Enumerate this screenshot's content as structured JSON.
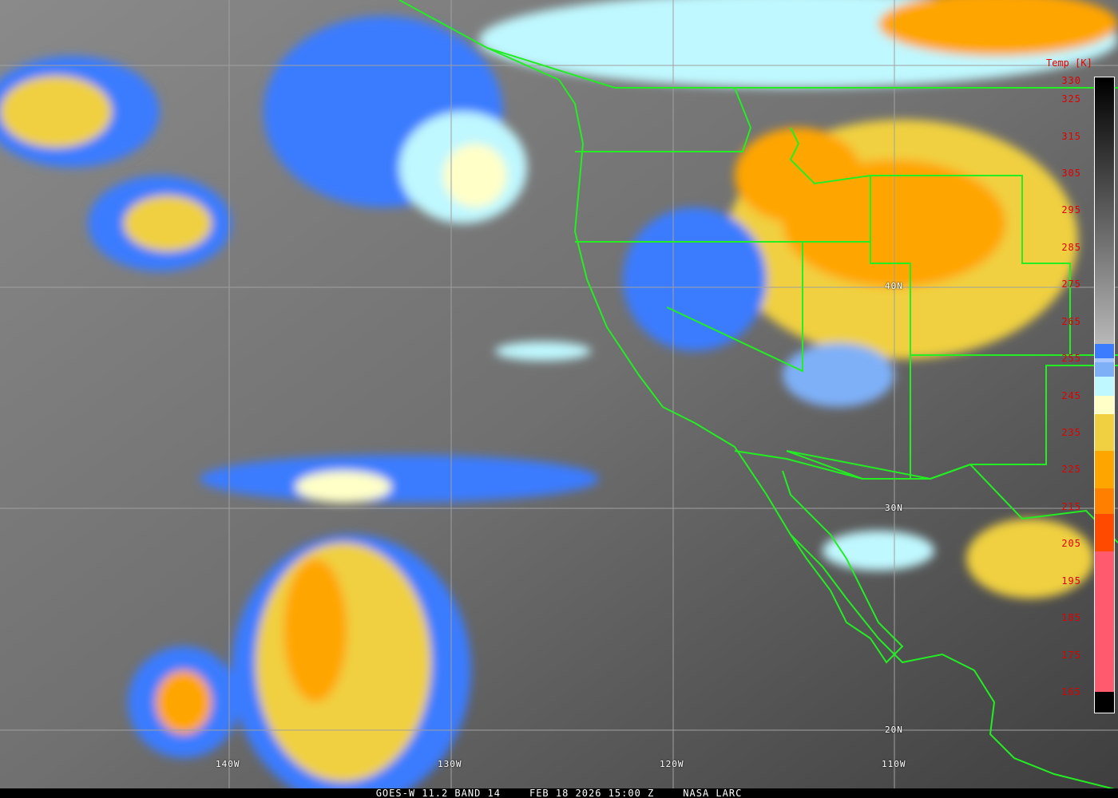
{
  "image": {
    "caption": {
      "satellite": "GOES-W 11.2 BAND 14",
      "datetime": "FEB 18 2026 15:00 Z",
      "source": "NASA LARC"
    },
    "longitude_labels": [
      "140W",
      "130W",
      "120W",
      "110W"
    ],
    "latitude_labels": [
      "40N",
      "30N",
      "20N"
    ],
    "boundary_color": "#22ee22",
    "grid_color": "#a0a0a0"
  },
  "legend": {
    "title": "Temp [K]",
    "ticks": [
      "330",
      "325",
      "315",
      "305",
      "295",
      "285",
      "275",
      "265",
      "255",
      "245",
      "235",
      "225",
      "215",
      "205",
      "195",
      "185",
      "175",
      "165"
    ],
    "range": [
      165,
      330
    ],
    "segments": [
      {
        "from": 330,
        "to": 259,
        "color": "gradient-black-to-lightgray"
      },
      {
        "from": 259,
        "to": 255,
        "color": "#3b7cff"
      },
      {
        "from": 255,
        "to": 254,
        "color": "#a8c8ff"
      },
      {
        "from": 254,
        "to": 250,
        "color": "#7eb0f8"
      },
      {
        "from": 250,
        "to": 245,
        "color": "#bff8ff"
      },
      {
        "from": 245,
        "to": 240,
        "color": "#ffffc8"
      },
      {
        "from": 240,
        "to": 230,
        "color": "#f0d040"
      },
      {
        "from": 230,
        "to": 220,
        "color": "#ffa500"
      },
      {
        "from": 220,
        "to": 213,
        "color": "#ff7f00"
      },
      {
        "from": 213,
        "to": 203,
        "color": "#ff4a00"
      },
      {
        "from": 203,
        "to": 165,
        "color": "#ff5a6e"
      }
    ]
  }
}
